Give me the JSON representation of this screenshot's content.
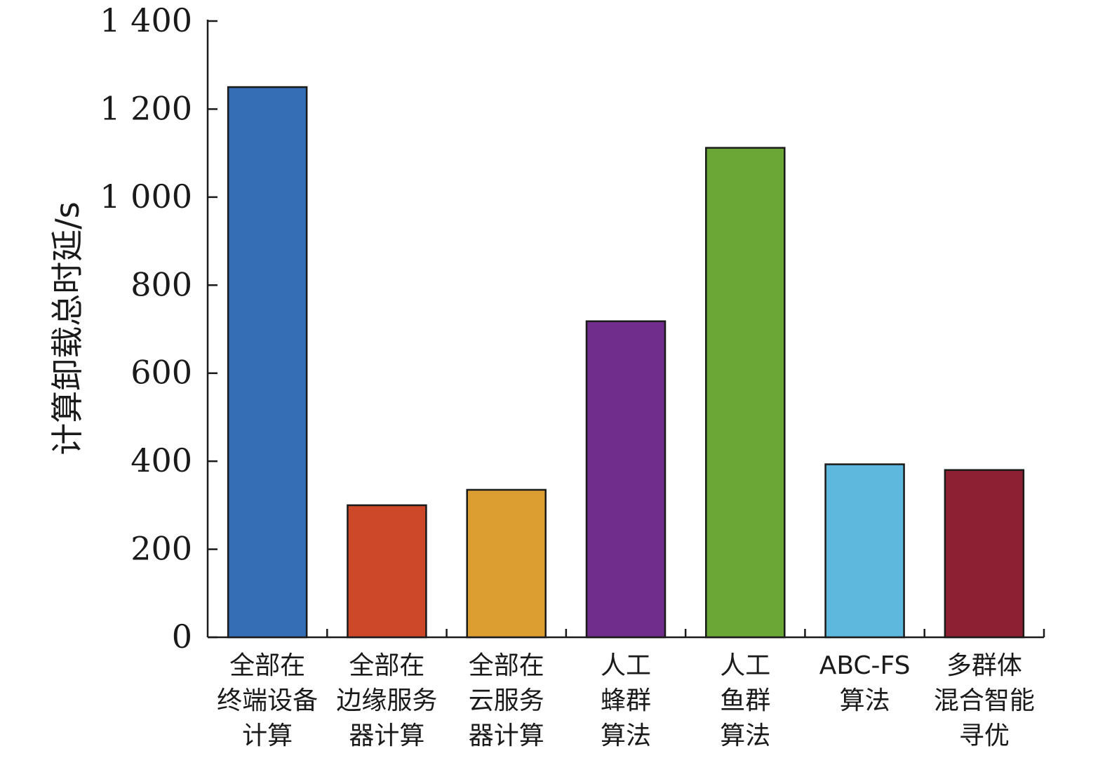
{
  "chart_data": {
    "type": "bar",
    "ylabel": "计算卸载总时延/s",
    "xlabel": "",
    "ylim": [
      0,
      1400
    ],
    "yticks": [
      0,
      200,
      400,
      600,
      800,
      1000,
      1200,
      1400
    ],
    "ytick_labels": [
      "0",
      "200",
      "400",
      "600",
      "800",
      "1 000",
      "1 200",
      "1 400"
    ],
    "categories": [
      [
        "全部在",
        "终端设备",
        "计算"
      ],
      [
        "全部在",
        "边缘服务",
        "器计算"
      ],
      [
        "全部在",
        "云服务",
        "器计算"
      ],
      [
        "人工",
        "蜂群",
        "算法"
      ],
      [
        "人工",
        "鱼群",
        "算法"
      ],
      [
        "ABC-FS",
        "算法"
      ],
      [
        "多群体",
        "混合智能",
        "寻优"
      ]
    ],
    "values": [
      1250,
      300,
      335,
      718,
      1112,
      393,
      380
    ],
    "colors": [
      "#366EB5",
      "#CC4828",
      "#DC9E31",
      "#702D8B",
      "#6AA736",
      "#5EB8DE",
      "#8E2033"
    ],
    "grid": false,
    "legend": "none"
  }
}
